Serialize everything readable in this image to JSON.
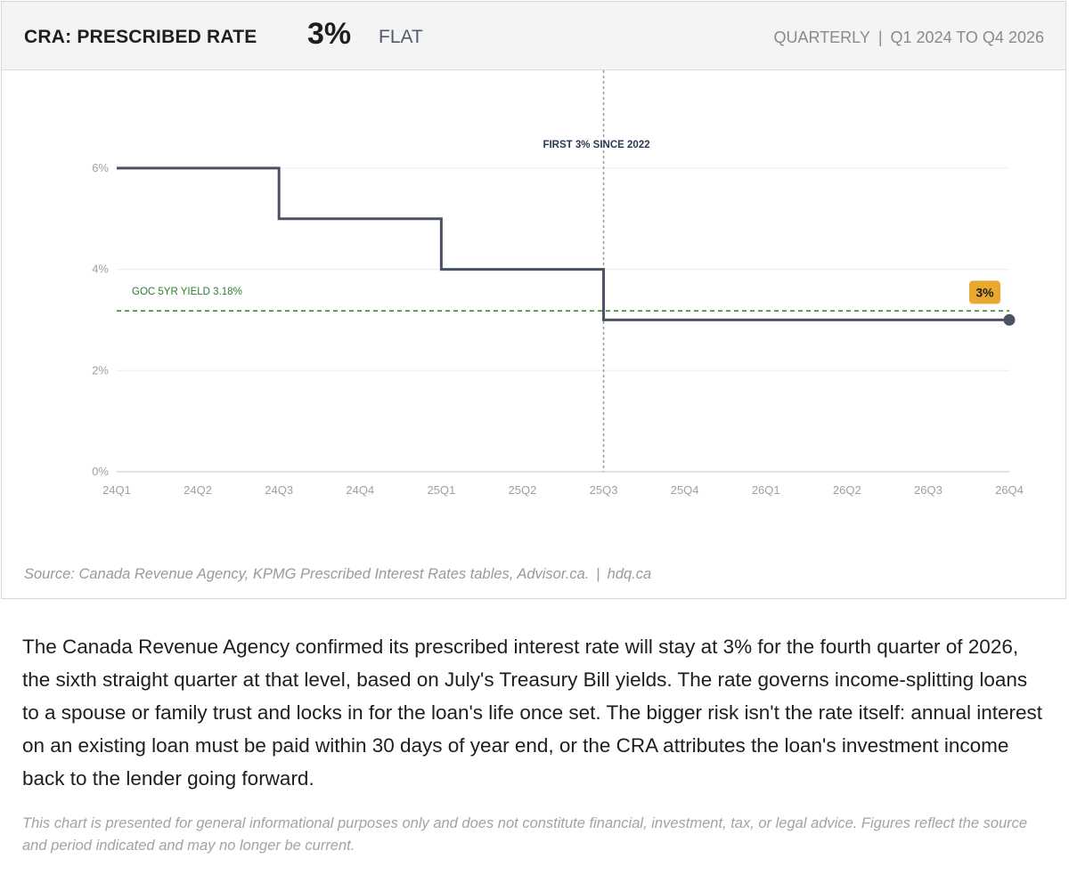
{
  "header": {
    "title": "CRA: PRESCRIBED RATE",
    "value": "3%",
    "status": "FLAT",
    "frequency": "QUARTERLY",
    "period": "Q1 2024 TO Q4 2026"
  },
  "chart_data": {
    "type": "line",
    "step": true,
    "categories": [
      "24Q1",
      "24Q2",
      "24Q3",
      "24Q4",
      "25Q1",
      "25Q2",
      "25Q3",
      "25Q4",
      "26Q1",
      "26Q2",
      "26Q3",
      "26Q4"
    ],
    "series": [
      {
        "values": [
          6,
          6,
          5,
          5,
          4,
          4,
          3,
          3,
          3,
          3,
          3,
          3
        ]
      }
    ],
    "ylim": [
      0,
      7
    ],
    "yticks": [
      0,
      2,
      4,
      6
    ],
    "ytick_labels": [
      "0%",
      "2%",
      "4%",
      "6%"
    ],
    "grid": true,
    "reference_line": {
      "label": "GOC 5YR YIELD 3.18%",
      "value": 3.18,
      "color": "#2e7d32"
    },
    "annotation": {
      "label": "FIRST 3% SINCE 2022",
      "category": "25Q3"
    },
    "end_badge": "3%",
    "colors": {
      "line": "#4a5263",
      "badge": "#e8a92e",
      "grid": "#ececec",
      "annotation": "#2b3a55"
    }
  },
  "footer": {
    "source": "Source: Canada Revenue Agency, KPMG Prescribed Interest Rates tables, Advisor.ca.",
    "site": "hdq.ca"
  },
  "body": {
    "paragraph": "The Canada Revenue Agency confirmed its prescribed interest rate will stay at 3% for the fourth quarter of 2026, the sixth straight quarter at that level, based on July's Treasury Bill yields. The rate governs income-splitting loans to a spouse or family trust and locks in for the loan's life once set. The bigger risk isn't the rate itself: annual interest on an existing loan must be paid within 30 days of year end, or the CRA attributes the loan's investment income back to the lender going forward.",
    "disclaimer": "This chart is presented for general informational purposes only and does not constitute financial, investment, tax, or legal advice. Figures reflect the source and period indicated and may no longer be current."
  }
}
